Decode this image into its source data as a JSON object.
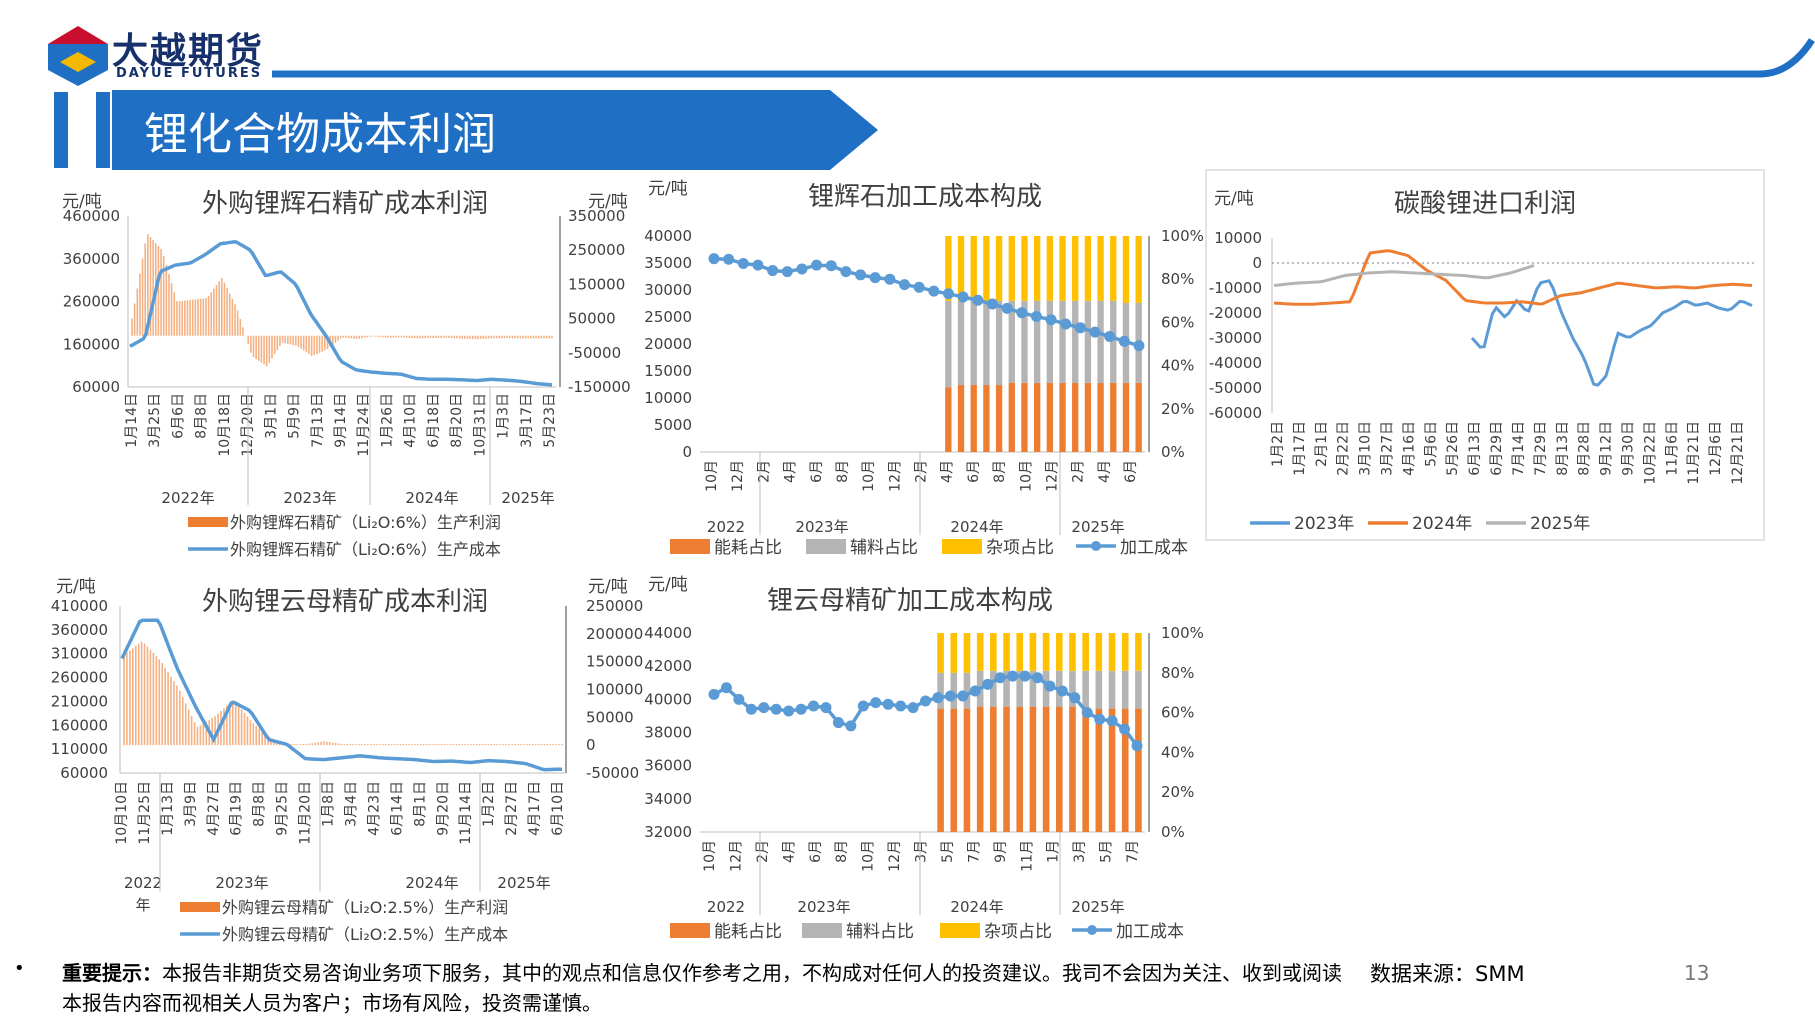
{
  "header": {
    "logo_cn": "大越期货",
    "logo_en": "DAYUE FUTURES",
    "title": "锂化合物成本利润",
    "brand_colors": {
      "navy": "#16306b",
      "blue": "#1f6fc4",
      "red": "#c8102e",
      "yellow": "#f5b800"
    }
  },
  "charts": [
    {
      "id": "spodumene_profit",
      "title": "外购锂辉石精矿成本利润",
      "unit_left": "元/吨",
      "unit_right": "元/吨",
      "y_left_ticks": [
        "460000",
        "360000",
        "260000",
        "160000",
        "60000"
      ],
      "y_right_ticks": [
        "350000",
        "250000",
        "150000",
        "50000",
        "-50000",
        "-150000"
      ],
      "x_ticks": [
        "1月14日",
        "3月25日",
        "6月6日",
        "8月8日",
        "10月18日",
        "12月20日",
        "3月1日",
        "5月9日",
        "7月13日",
        "9月14日",
        "11月24日",
        "1月26日",
        "4月10日",
        "6月18日",
        "8月20日",
        "10月31日",
        "1月3日",
        "3月17日",
        "5月23日"
      ],
      "years": [
        "2022年",
        "2023年",
        "2024年",
        "2025年"
      ],
      "legend": [
        "外购锂辉石精矿（Li₂O:6%）生产利润",
        "外购锂辉石精矿（Li₂O:6%）生产成本"
      ]
    },
    {
      "id": "spodumene_cost_comp",
      "title": "锂辉石加工成本构成",
      "unit_left": "元/吨",
      "y_left_ticks": [
        "40000",
        "35000",
        "30000",
        "25000",
        "20000",
        "15000",
        "10000",
        "5000",
        "0"
      ],
      "y_right_ticks": [
        "100%",
        "80%",
        "60%",
        "40%",
        "20%",
        "0%"
      ],
      "x_ticks": [
        "10月",
        "12月",
        "2月",
        "4月",
        "6月",
        "8月",
        "10月",
        "12月",
        "2月",
        "4月",
        "6月",
        "8月",
        "10月",
        "12月",
        "2月",
        "4月",
        "6月"
      ],
      "years": [
        "2022",
        "2023年",
        "2024年",
        "2025年"
      ],
      "legend": [
        "能耗占比",
        "辅料占比",
        "杂项占比",
        "加工成本"
      ]
    },
    {
      "id": "carbonate_import",
      "title": "碳酸锂进口利润",
      "unit_left": "元/吨",
      "y_left_ticks": [
        "10000",
        "0",
        "-10000",
        "-20000",
        "-30000",
        "-40000",
        "-50000",
        "-60000"
      ],
      "x_ticks": [
        "1月2日",
        "1月17日",
        "2月1日",
        "2月22日",
        "3月10日",
        "3月27日",
        "4月16日",
        "5月6日",
        "5月26日",
        "6月13日",
        "6月29日",
        "7月14日",
        "7月29日",
        "8月13日",
        "8月28日",
        "9月12日",
        "9月30日",
        "10月22日",
        "11月6日",
        "11月21日",
        "12月6日",
        "12月21日"
      ],
      "legend": [
        "2023年",
        "2024年",
        "2025年"
      ]
    },
    {
      "id": "lepidolite_profit",
      "title": "外购锂云母精矿成本利润",
      "unit_left": "元/吨",
      "unit_right": "元/吨",
      "y_left_ticks": [
        "410000",
        "360000",
        "310000",
        "260000",
        "210000",
        "160000",
        "110000",
        "60000"
      ],
      "y_right_ticks": [
        "250000",
        "200000",
        "150000",
        "100000",
        "50000",
        "0",
        "-50000"
      ],
      "x_ticks": [
        "10月10日",
        "11月25日",
        "1月13日",
        "3月9日",
        "4月27日",
        "6月19日",
        "8月8日",
        "9月25日",
        "11月20日",
        "1月8日",
        "3月4日",
        "4月23日",
        "6月14日",
        "8月1日",
        "9月20日",
        "11月14日",
        "1月2日",
        "2月27日",
        "4月17日",
        "6月10日"
      ],
      "years": [
        "2022\n年",
        "2023年",
        "2024年",
        "2025年"
      ],
      "legend": [
        "外购锂云母精矿（Li₂O:2.5%）生产利润",
        "外购锂云母精矿（Li₂O:2.5%）生产成本"
      ]
    },
    {
      "id": "lepidolite_cost_comp",
      "title": "锂云母精矿加工成本构成",
      "unit_left": "元/吨",
      "y_left_ticks": [
        "44000",
        "42000",
        "40000",
        "38000",
        "36000",
        "34000",
        "32000"
      ],
      "y_right_ticks": [
        "100%",
        "80%",
        "60%",
        "40%",
        "20%",
        "0%"
      ],
      "x_ticks": [
        "10月",
        "12月",
        "2月",
        "4月",
        "6月",
        "8月",
        "10月",
        "12月",
        "3月",
        "5月",
        "7月",
        "9月",
        "11月",
        "1月",
        "3月",
        "5月",
        "7月"
      ],
      "years": [
        "2022",
        "2023年",
        "2024年",
        "2025年"
      ],
      "legend": [
        "能耗占比",
        "辅料占比",
        "杂项占比",
        "加工成本"
      ]
    }
  ],
  "chart_data": [
    {
      "type": "bar+line",
      "title": "外购锂辉石精矿成本利润",
      "series": [
        {
          "name": "外购锂辉石精矿（Li₂O:6%）生产成本",
          "axis": "left",
          "values": [
            155000,
            175000,
            330000,
            345000,
            350000,
            370000,
            395000,
            400000,
            380000,
            320000,
            330000,
            300000,
            230000,
            180000,
            120000,
            100000,
            95000,
            92000,
            90000,
            80000,
            78000,
            78000,
            77000,
            75000,
            78000,
            76000,
            73000,
            68000,
            65000
          ]
        },
        {
          "name": "外购锂辉石精矿（Li₂O:6%）生产利润",
          "axis": "right",
          "values": [
            50000,
            300000,
            250000,
            100000,
            105000,
            110000,
            170000,
            80000,
            -60000,
            -90000,
            -20000,
            -30000,
            -60000,
            -40000,
            -5000,
            -10000,
            -2000,
            -6000,
            -5000,
            -8000,
            -7000,
            -6000,
            -9000,
            -10000,
            -8000,
            -7000,
            -8000,
            -8000,
            -8000
          ]
        }
      ],
      "ylim_left": [
        60000,
        460000
      ],
      "ylim_right": [
        -150000,
        350000
      ]
    },
    {
      "type": "stacked-bar+line",
      "title": "锂辉石加工成本构成",
      "series": [
        {
          "name": "加工成本",
          "axis": "left",
          "values": [
            35800,
            35700,
            34900,
            34600,
            33600,
            33400,
            33900,
            34600,
            34500,
            33400,
            32800,
            32300,
            32000,
            31000,
            30500,
            29800,
            29300,
            28700,
            28100,
            27400,
            26600,
            25800,
            25100,
            24500,
            23700,
            23000,
            22200,
            21400,
            20500,
            19700
          ]
        },
        {
          "name": "能耗占比",
          "axis": "right",
          "values": [
            0.3,
            0.31,
            0.31,
            0.31,
            0.31,
            0.32,
            0.32,
            0.32,
            0.32,
            0.32,
            0.32,
            0.32,
            0.32,
            0.32,
            0.32,
            0.32
          ]
        },
        {
          "name": "辅料占比",
          "axis": "right",
          "values": [
            0.4,
            0.39,
            0.39,
            0.39,
            0.39,
            0.38,
            0.38,
            0.38,
            0.38,
            0.38,
            0.38,
            0.38,
            0.38,
            0.38,
            0.37,
            0.37
          ]
        },
        {
          "name": "杂项占比",
          "axis": "right",
          "values": [
            0.3,
            0.3,
            0.3,
            0.3,
            0.3,
            0.3,
            0.3,
            0.3,
            0.3,
            0.3,
            0.3,
            0.3,
            0.3,
            0.3,
            0.31,
            0.31
          ]
        }
      ],
      "ylim_left": [
        0,
        40000
      ],
      "ylim_right": [
        0,
        1
      ]
    },
    {
      "type": "line",
      "title": "碳酸锂进口利润",
      "series": [
        {
          "name": "2023年",
          "values": [
            -30000,
            -35000,
            -17000,
            -22000,
            -15000,
            -20000,
            -8000,
            -7000,
            -20000,
            -30000,
            -38000,
            -50000,
            -45000,
            -28000,
            -30000,
            -27000,
            -25000,
            -20000,
            -18000,
            -15000,
            -17000,
            -16000,
            -18000,
            -19000,
            -15000,
            -17000
          ]
        },
        {
          "name": "2024年",
          "values": [
            -16000,
            -16500,
            -16500,
            -16000,
            -15500,
            4000,
            5000,
            3000,
            -3000,
            -7000,
            -15000,
            -16000,
            -16000,
            -15500,
            -16500,
            -13000,
            -12000,
            -10000,
            -8000,
            -9000,
            -10000,
            -9500,
            -10000,
            -9000,
            -8500,
            -9000
          ]
        },
        {
          "name": "2025年",
          "values": [
            -9000,
            -8000,
            -7500,
            -5000,
            -4000,
            -3500,
            -4000,
            -4500,
            -5000,
            -6000,
            -4000,
            -1000
          ]
        }
      ],
      "ylim": [
        -60000,
        10000
      ]
    },
    {
      "type": "bar+line",
      "title": "外购锂云母精矿成本利润",
      "series": [
        {
          "name": "外购锂云母精矿（Li₂O:2.5%）生产成本",
          "axis": "left",
          "values": [
            300000,
            380000,
            380000,
            280000,
            200000,
            130000,
            210000,
            190000,
            130000,
            120000,
            90000,
            88000,
            92000,
            96000,
            92000,
            90000,
            88000,
            84000,
            85000,
            82000,
            86000,
            84000,
            80000,
            67000,
            68000
          ]
        },
        {
          "name": "外购锂云母精矿（Li₂O:2.5%）生产利润",
          "axis": "right",
          "values": [
            160000,
            185000,
            150000,
            100000,
            30000,
            50000,
            80000,
            40000,
            10000,
            0,
            0,
            5000,
            0,
            0,
            0,
            0,
            0,
            0,
            0,
            0,
            0,
            0,
            0,
            0,
            0
          ]
        }
      ],
      "ylim_left": [
        60000,
        410000
      ],
      "ylim_right": [
        -50000,
        250000
      ]
    },
    {
      "type": "stacked-bar+line",
      "title": "锂云母精矿加工成本构成",
      "series": [
        {
          "name": "加工成本",
          "axis": "left",
          "values": [
            40300,
            40700,
            40000,
            39400,
            39500,
            39400,
            39300,
            39400,
            39600,
            39500,
            38600,
            38400,
            39600,
            39800,
            39700,
            39600,
            39500,
            39900,
            40100,
            40200,
            40200,
            40500,
            40900,
            41300,
            41400,
            41400,
            41300,
            40800,
            40500,
            40100,
            39200,
            38800,
            38700,
            38200,
            37200
          ]
        },
        {
          "name": "能耗占比",
          "axis": "right",
          "values": [
            0.62,
            0.62,
            0.62,
            0.63,
            0.63,
            0.63,
            0.63,
            0.63,
            0.63,
            0.63,
            0.63,
            0.62,
            0.62,
            0.62,
            0.62,
            0.62
          ]
        },
        {
          "name": "辅料占比",
          "axis": "right",
          "values": [
            0.18,
            0.18,
            0.18,
            0.18,
            0.18,
            0.18,
            0.18,
            0.18,
            0.18,
            0.18,
            0.18,
            0.19,
            0.19,
            0.19,
            0.19,
            0.19
          ]
        },
        {
          "name": "杂项占比",
          "axis": "right",
          "values": [
            0.2,
            0.2,
            0.2,
            0.19,
            0.19,
            0.19,
            0.19,
            0.19,
            0.19,
            0.19,
            0.19,
            0.19,
            0.19,
            0.19,
            0.19,
            0.19
          ]
        }
      ],
      "ylim_left": [
        32000,
        44000
      ],
      "ylim_right": [
        0,
        1
      ]
    }
  ],
  "footer": {
    "bullet": "•",
    "note_bold": "重要提示：",
    "note": "本报告非期货交易咨询业务项下服务，其中的观点和信息仅作参考之用，不构成对任何人的投资建议。我司不会因为关注、收到或阅读本报告内容而视相关人员为客户；市场有风险，投资需谨慎。",
    "source": "数据来源：SMM",
    "page": "13"
  }
}
